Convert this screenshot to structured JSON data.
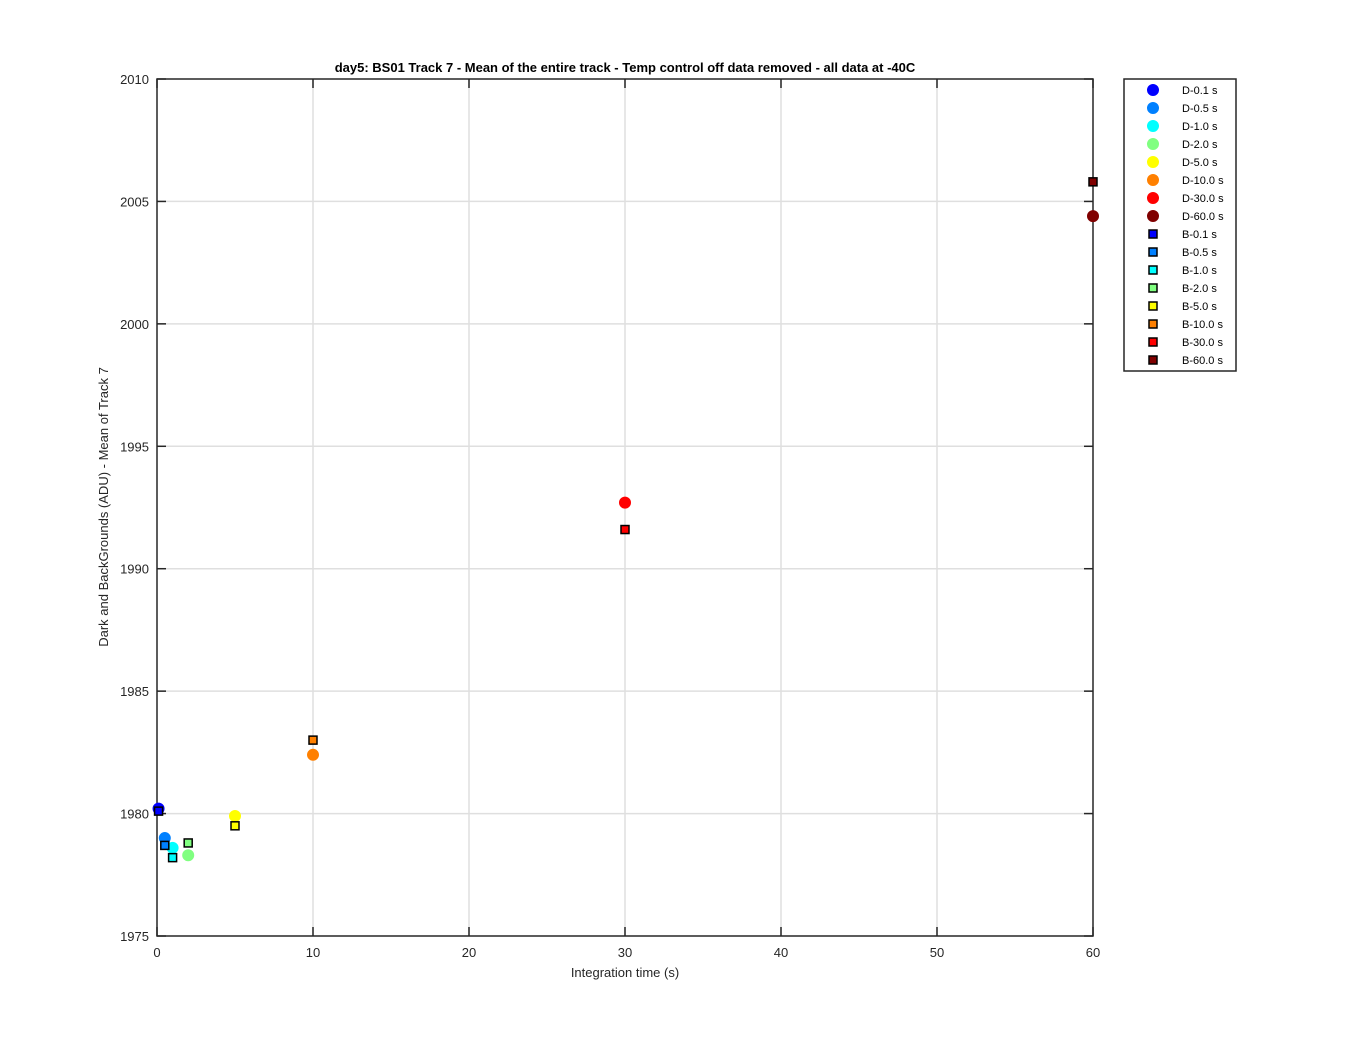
{
  "chart_data": {
    "type": "scatter",
    "title": "day5: BS01  Track 7 - Mean of the entire track - Temp control off data removed - all data at -40C",
    "xlabel": "Integration time (s)",
    "ylabel": "Dark and BackGrounds (ADU) - Mean of Track 7",
    "xlim": [
      0,
      60
    ],
    "ylim": [
      1975,
      2010
    ],
    "xticks": [
      0,
      10,
      20,
      30,
      40,
      50,
      60
    ],
    "yticks": [
      1975,
      1980,
      1985,
      1990,
      1995,
      2000,
      2005,
      2010
    ],
    "xtick_labels": [
      "0",
      "10",
      "20",
      "30",
      "40",
      "50",
      "60"
    ],
    "ytick_labels": [
      "1975",
      "1980",
      "1985",
      "1990",
      "1995",
      "2000",
      "2005",
      "2010"
    ],
    "grid": true,
    "legend_position": "outside-top-right",
    "series": [
      {
        "name": "D-0.1 s",
        "marker": "circle",
        "color": "#0000ff",
        "x": [
          0.1
        ],
        "y": [
          1980.2
        ]
      },
      {
        "name": "D-0.5 s",
        "marker": "circle",
        "color": "#0080ff",
        "x": [
          0.5
        ],
        "y": [
          1979.0
        ]
      },
      {
        "name": "D-1.0 s",
        "marker": "circle",
        "color": "#00ffff",
        "x": [
          1.0
        ],
        "y": [
          1978.6
        ]
      },
      {
        "name": "D-2.0 s",
        "marker": "circle",
        "color": "#80ff80",
        "x": [
          2.0
        ],
        "y": [
          1978.3
        ]
      },
      {
        "name": "D-5.0 s",
        "marker": "circle",
        "color": "#ffff00",
        "x": [
          5.0
        ],
        "y": [
          1979.9
        ]
      },
      {
        "name": "D-10.0 s",
        "marker": "circle",
        "color": "#ff8000",
        "x": [
          10.0
        ],
        "y": [
          1982.4
        ]
      },
      {
        "name": "D-30.0 s",
        "marker": "circle",
        "color": "#ff0000",
        "x": [
          30.0
        ],
        "y": [
          1992.7
        ]
      },
      {
        "name": "D-60.0 s",
        "marker": "circle",
        "color": "#800000",
        "x": [
          60.0
        ],
        "y": [
          2004.4
        ]
      },
      {
        "name": "B-0.1 s",
        "marker": "square",
        "color": "#0000ff",
        "x": [
          0.1
        ],
        "y": [
          1980.1
        ]
      },
      {
        "name": "B-0.5 s",
        "marker": "square",
        "color": "#0080ff",
        "x": [
          0.5
        ],
        "y": [
          1978.7
        ]
      },
      {
        "name": "B-1.0 s",
        "marker": "square",
        "color": "#00ffff",
        "x": [
          1.0
        ],
        "y": [
          1978.2
        ]
      },
      {
        "name": "B-2.0 s",
        "marker": "square",
        "color": "#80ff80",
        "x": [
          2.0
        ],
        "y": [
          1978.8
        ]
      },
      {
        "name": "B-5.0 s",
        "marker": "square",
        "color": "#ffff00",
        "x": [
          5.0
        ],
        "y": [
          1979.5
        ]
      },
      {
        "name": "B-10.0 s",
        "marker": "square",
        "color": "#ff8000",
        "x": [
          10.0
        ],
        "y": [
          1983.0
        ]
      },
      {
        "name": "B-30.0 s",
        "marker": "square",
        "color": "#ff0000",
        "x": [
          30.0
        ],
        "y": [
          1991.6
        ]
      },
      {
        "name": "B-60.0 s",
        "marker": "square",
        "color": "#800000",
        "x": [
          60.0
        ],
        "y": [
          2005.8
        ]
      }
    ]
  }
}
